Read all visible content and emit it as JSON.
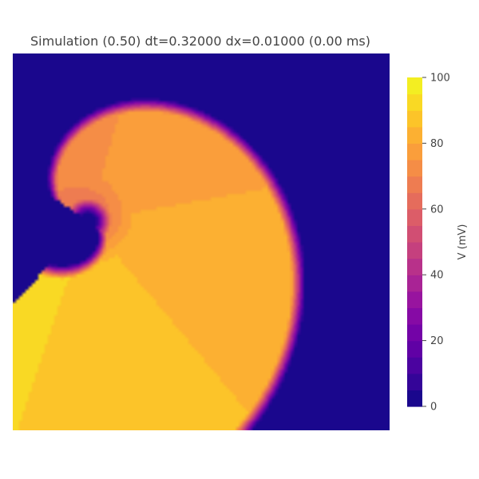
{
  "chart_data": {
    "type": "heatmap",
    "title": "Simulation (0.50) dt=0.32000 dx=0.01000 (0.00 ms)",
    "xlabel": "",
    "ylabel": "",
    "colorbar": {
      "label": "V (mV)",
      "range": [
        0,
        100
      ],
      "ticks": [
        0,
        20,
        40,
        60,
        80,
        100
      ],
      "levels": 20,
      "colorscale": "plasma"
    },
    "field_description_values": {
      "background_value": 0,
      "front_max_value": 92,
      "tail_value": 70,
      "core_value": 60
    }
  }
}
